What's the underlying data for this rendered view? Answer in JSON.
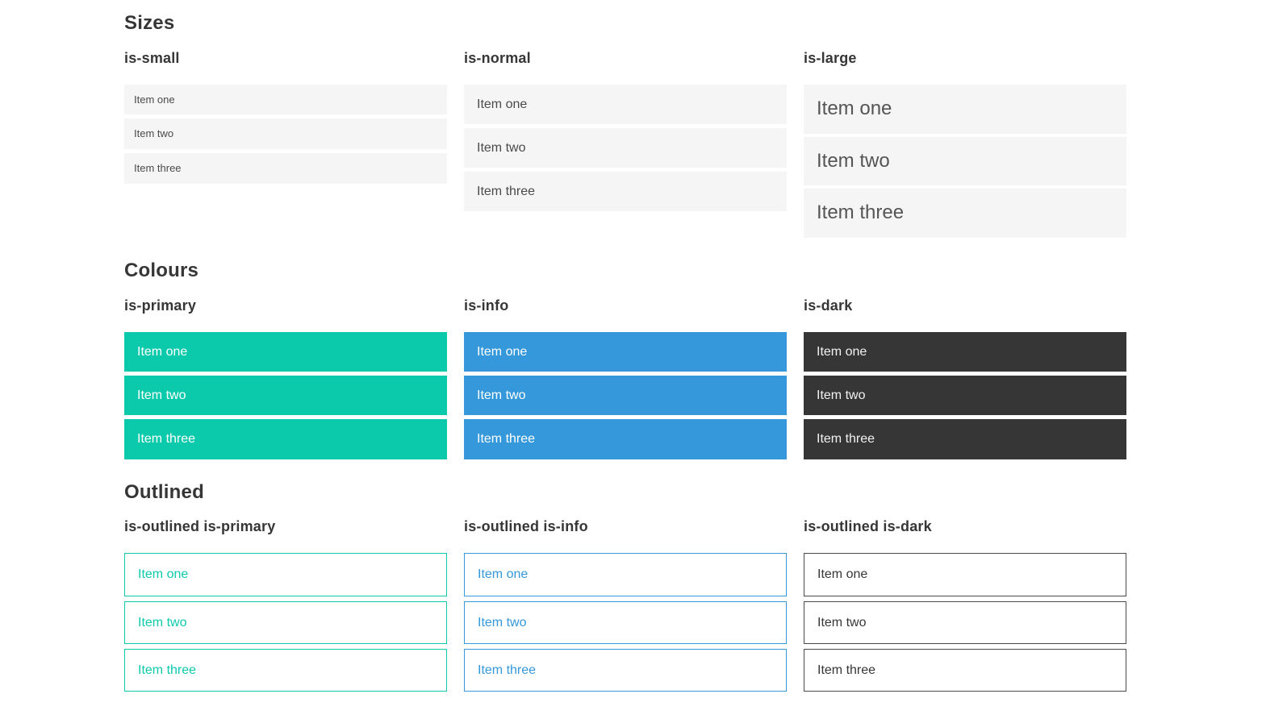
{
  "colors": {
    "primary": "#0bcaac",
    "info": "#3498db",
    "dark": "#363636",
    "item_bg": "#f5f5f5"
  },
  "sections": [
    {
      "title": "Sizes",
      "groups": [
        {
          "label": "is-small",
          "items": [
            "Item one",
            "Item two",
            "Item three"
          ]
        },
        {
          "label": "is-normal",
          "items": [
            "Item one",
            "Item two",
            "Item three"
          ]
        },
        {
          "label": "is-large",
          "items": [
            "Item one",
            "Item two",
            "Item three"
          ]
        }
      ]
    },
    {
      "title": "Colours",
      "groups": [
        {
          "label": "is-primary",
          "items": [
            "Item one",
            "Item two",
            "Item three"
          ]
        },
        {
          "label": "is-info",
          "items": [
            "Item one",
            "Item two",
            "Item three"
          ]
        },
        {
          "label": "is-dark",
          "items": [
            "Item one",
            "Item two",
            "Item three"
          ]
        }
      ]
    },
    {
      "title": "Outlined",
      "groups": [
        {
          "label": "is-outlined is-primary",
          "items": [
            "Item one",
            "Item two",
            "Item three"
          ]
        },
        {
          "label": "is-outlined is-info",
          "items": [
            "Item one",
            "Item two",
            "Item three"
          ]
        },
        {
          "label": "is-outlined is-dark",
          "items": [
            "Item one",
            "Item two",
            "Item three"
          ]
        }
      ]
    }
  ]
}
